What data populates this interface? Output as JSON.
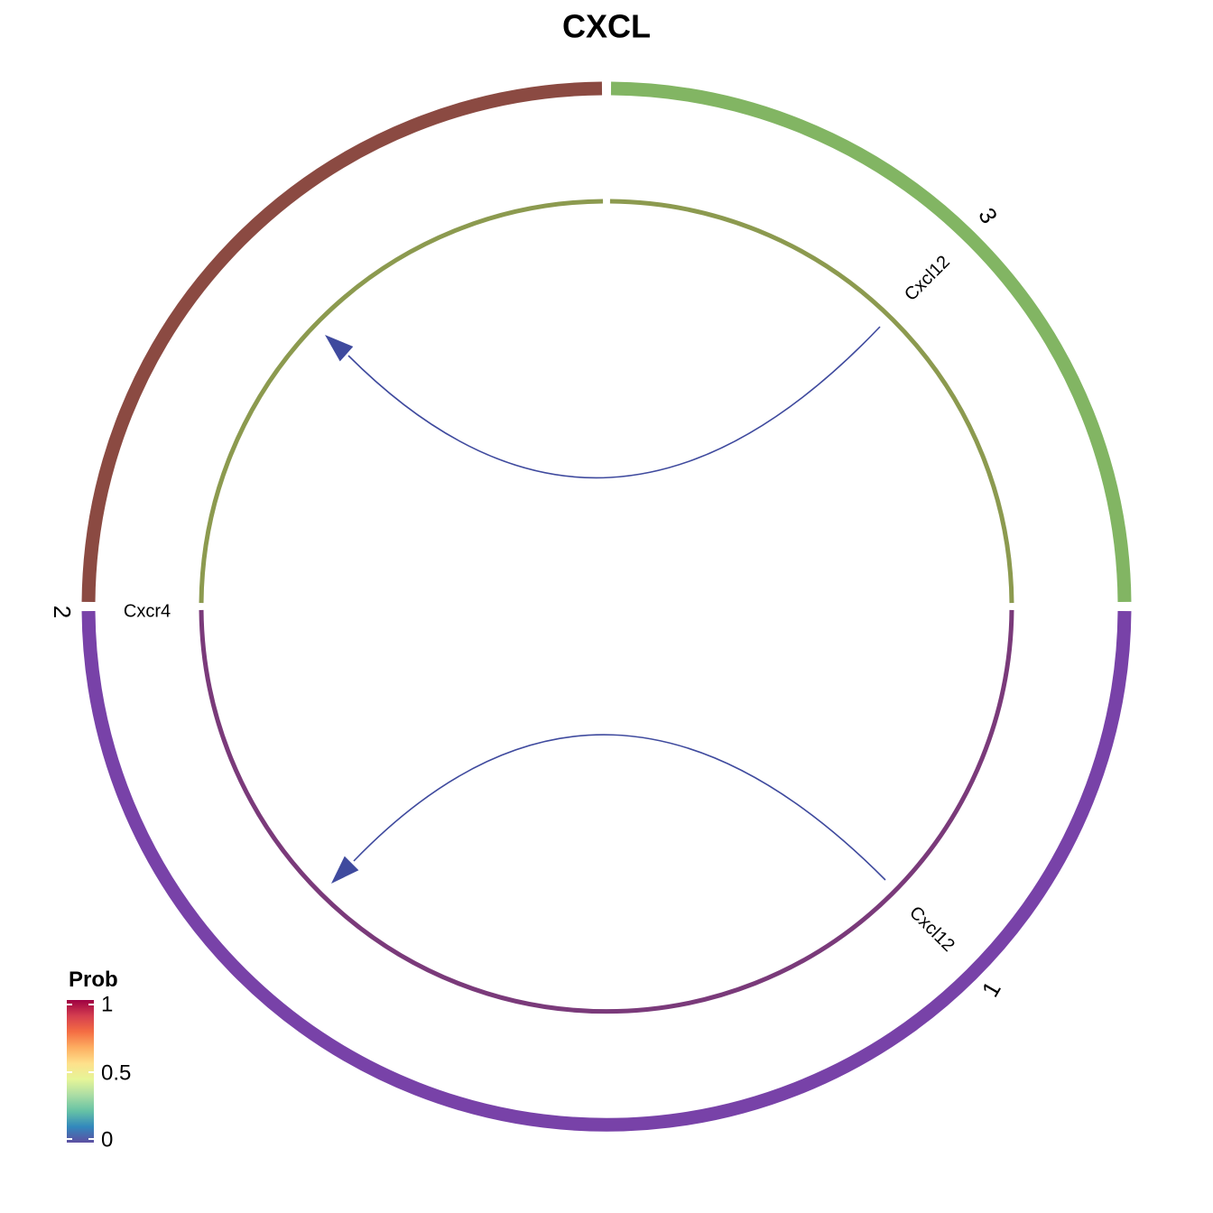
{
  "title": "CXCL",
  "outer_sectors": [
    {
      "label": "1",
      "color": "#8B4A42",
      "start_deg": 90,
      "end_deg": 180
    },
    {
      "label": "2",
      "color": "#7842A8",
      "start_deg": 180,
      "end_deg": 360
    },
    {
      "label": "3",
      "color": "#82B563",
      "start_deg": 0,
      "end_deg": 90
    }
  ],
  "inner_tracks": [
    {
      "color": "#8C9A4F",
      "start_deg": 0,
      "end_deg": 90
    },
    {
      "color": "#8C9A4F",
      "start_deg": 90,
      "end_deg": 180
    },
    {
      "color": "#7A3A7A",
      "start_deg": 180,
      "end_deg": 360
    }
  ],
  "genes": [
    {
      "label": "Cxcl12",
      "sector": "3"
    },
    {
      "label": "Cxcl12",
      "sector": "1"
    },
    {
      "label": "Cxcr4",
      "sector": "2"
    }
  ],
  "links": [
    {
      "source": "Cxcl12",
      "source_sector": "3",
      "target": "Cxcr4",
      "target_sector": "2",
      "prob": 0.03,
      "color": "#3F4A9E"
    },
    {
      "source": "Cxcl12",
      "source_sector": "1",
      "target": "Cxcr4",
      "target_sector": "2",
      "prob": 0.03,
      "color": "#3F4A9E"
    }
  ],
  "legend": {
    "title": "Prob",
    "ticks": [
      "1",
      "0.5",
      "0"
    ],
    "colors": [
      "#9E0142",
      "#D53E4F",
      "#F46D43",
      "#FDAE61",
      "#FEE08B",
      "#E6F598",
      "#ABDDA4",
      "#66C2A5",
      "#3288BD",
      "#5E4FA2"
    ]
  }
}
